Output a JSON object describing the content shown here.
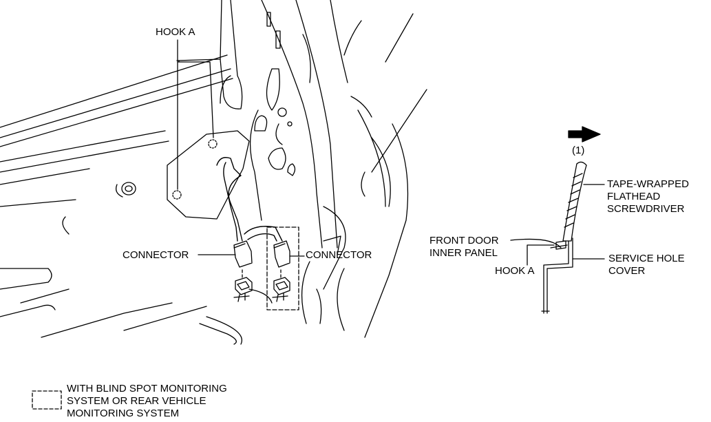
{
  "labels": {
    "hook_a_top": "HOOK A",
    "connector_left": "CONNECTOR",
    "connector_right": "CONNECTOR",
    "arrow_number": "(1)",
    "screwdriver": [
      "TAPE-WRAPPED",
      "FLATHEAD",
      "SCREWDRIVER"
    ],
    "inner_panel": [
      "FRONT DOOR",
      "INNER PANEL"
    ],
    "hook_a_detail": "HOOK A",
    "service_cover": [
      "SERVICE HOLE",
      "COVER"
    ],
    "legend": [
      "WITH BLIND SPOT MONITORING",
      "SYSTEM OR REAR VEHICLE",
      "MONITORING SYSTEM"
    ]
  },
  "legend_line_style": "dashed",
  "icons": [
    "direction-arrow-icon",
    "dashed-box-legend-icon"
  ],
  "colors": {
    "ink": "#000000",
    "background": "#ffffff"
  }
}
